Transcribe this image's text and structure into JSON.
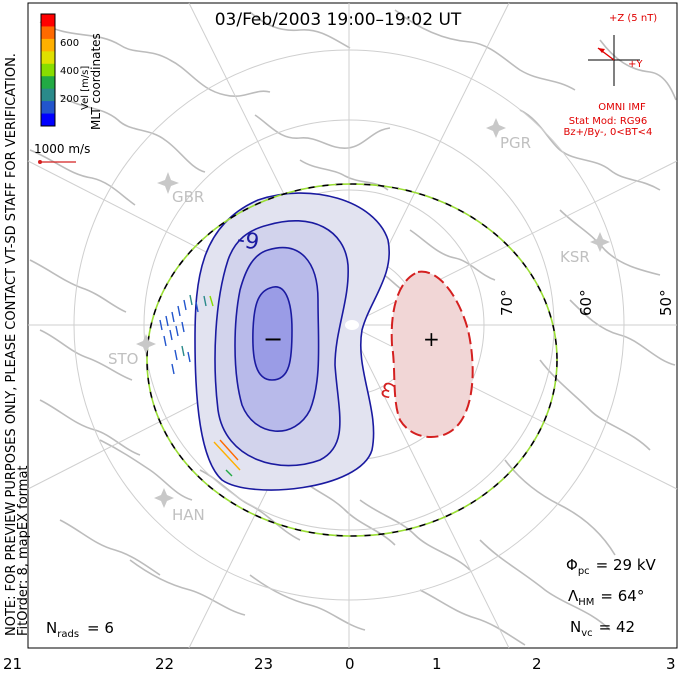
{
  "title": "03/Feb/2003 19:00–19:02 UT",
  "side_note_1": "NOTE: FOR PREVIEW PURPOSES ONLY, PLEASE CONTACT VT-SD STAFF FOR VERIFICATION.",
  "side_note_2": "FitOrder: 8, mapEX format",
  "legend": {
    "axis_label": "Vel [m/s]",
    "coords_label": "MLT coordinates",
    "ticks": [
      "600",
      "400",
      "200"
    ],
    "colors": [
      "#ff0000",
      "#ff6a00",
      "#ffb000",
      "#e0e000",
      "#88dd00",
      "#22aa44",
      "#2a8a8a",
      "#2255cc",
      "#0000ff"
    ],
    "vector_scale_label": "1000 m/s"
  },
  "imf": {
    "z_label": "+Z (5 nT)",
    "y_label": "+Y",
    "source": "OMNI IMF",
    "model": "Stat Mod: RG96",
    "condition": "Bz+/By-, 0<BT<4",
    "color": "#e00000"
  },
  "stations": [
    "GBR",
    "PGR",
    "KSR",
    "STO",
    "HAN"
  ],
  "latitude_labels": [
    "70°",
    "60°",
    "50°"
  ],
  "mlt_labels": [
    "21",
    "22",
    "23",
    "0",
    "1",
    "2",
    "3"
  ],
  "contours": {
    "negative_label": "-9",
    "negative_center": "−",
    "positive_label": "3",
    "positive_center": "+"
  },
  "stats": {
    "phi_symbol": "Φ",
    "phi_sub": "pc",
    "phi_value": "= 29 kV",
    "lambda_symbol": "Λ",
    "lambda_sub": "HM",
    "lambda_value": "= 64°",
    "n_symbol": "N",
    "n_sub": "vc",
    "n_value": "= 42",
    "nrads_symbol": "N",
    "nrads_sub": "rads",
    "nrads_value": "= 6"
  },
  "colors": {
    "negative_line": "#1a1aa0",
    "negative_fill": [
      "#e2e3f0",
      "#d2d3ec",
      "#b8baea",
      "#9a9ce6"
    ],
    "positive_line": "#d42020",
    "positive_fill": "#f1d6d6",
    "coast": "#bcbcbc",
    "grid": "#cfcfcf",
    "hmb": "#99dd33",
    "station": "#c8c8c8"
  }
}
